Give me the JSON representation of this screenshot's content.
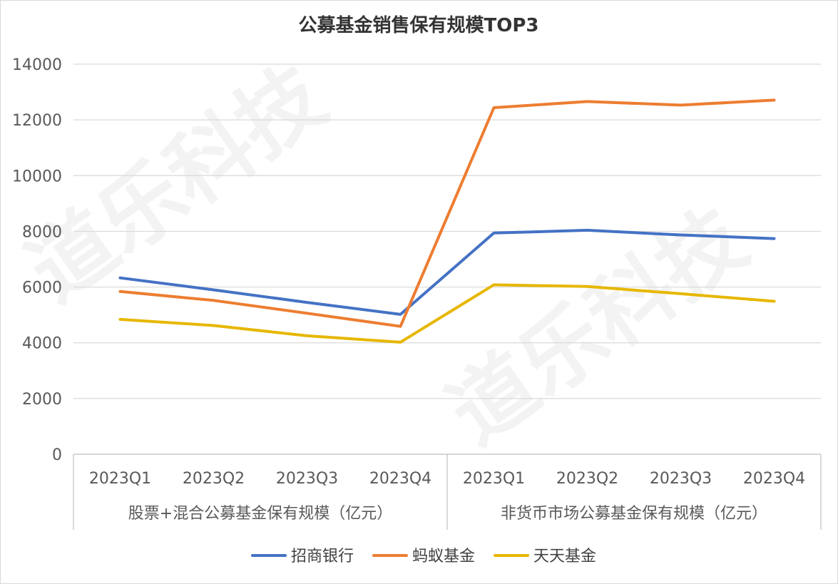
{
  "chart_data": {
    "type": "line",
    "title": "公募基金销售保有规模TOP3",
    "watermark": "道乐科技",
    "ylim": [
      0,
      14000
    ],
    "yticks": [
      0,
      2000,
      4000,
      6000,
      8000,
      10000,
      12000,
      14000
    ],
    "categories": [
      "2023Q1",
      "2023Q2",
      "2023Q3",
      "2023Q4",
      "2023Q1",
      "2023Q2",
      "2023Q3",
      "2023Q4"
    ],
    "groups": [
      {
        "label": "股票+混合公募基金保有规模（亿元）",
        "span": 4
      },
      {
        "label": "非货币市场公募基金保有规模（亿元）",
        "span": 4
      }
    ],
    "series": [
      {
        "name": "招商银行",
        "color": "#4472c4",
        "values": [
          6330,
          5900,
          5450,
          5020,
          7940,
          8040,
          7870,
          7740
        ]
      },
      {
        "name": "蚂蚁基金",
        "color": "#ed7d31",
        "values": [
          5840,
          5520,
          5060,
          4590,
          12440,
          12660,
          12530,
          12710
        ]
      },
      {
        "name": "天天基金",
        "color": "#e6b700",
        "values": [
          4840,
          4620,
          4250,
          4020,
          6080,
          6020,
          5760,
          5490
        ]
      }
    ],
    "grid": true,
    "legend_position": "bottom"
  }
}
